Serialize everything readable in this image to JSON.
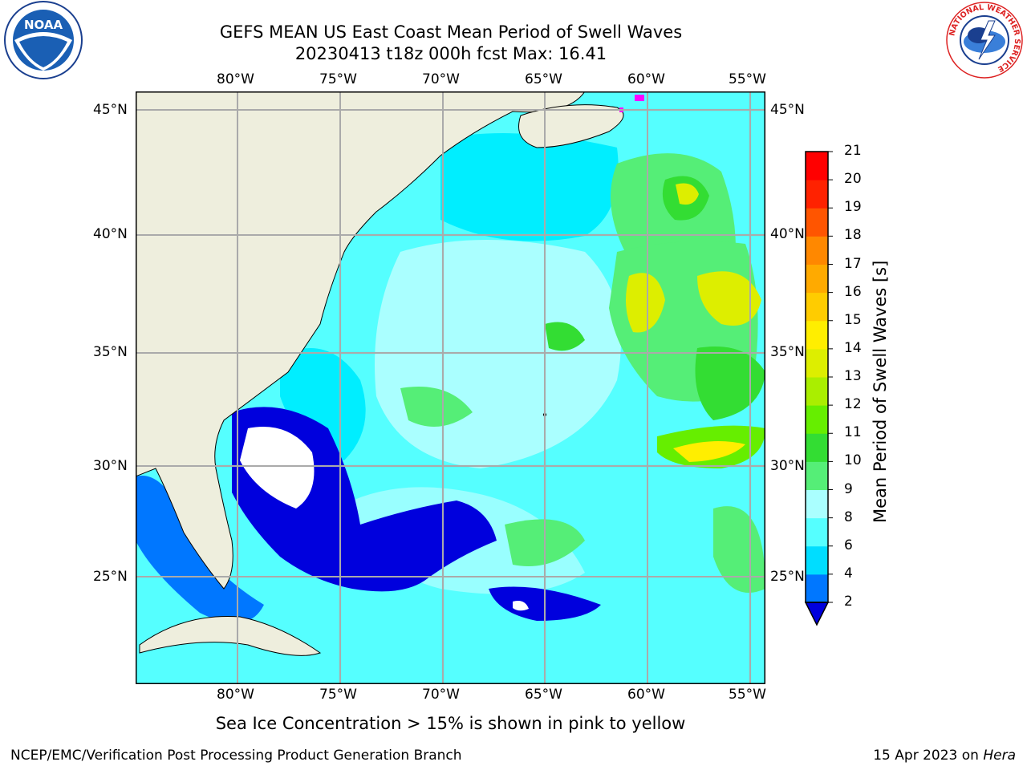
{
  "title": {
    "line1": "GEFS MEAN US East Coast Mean Period of Swell Waves",
    "line2": "20230413 t18z 000h fcst   Max: 16.41"
  },
  "map": {
    "lon_ticks": [
      "80°W",
      "75°W",
      "70°W",
      "65°W",
      "60°W",
      "55°W"
    ],
    "lat_ticks": [
      "45°N",
      "40°N",
      "35°N",
      "30°N",
      "25°N"
    ],
    "land_color": "#eeeedd",
    "grid_color": "#aaaaaa"
  },
  "colorbar": {
    "label": "Mean Period of Swell Waves [s]",
    "ticks": [
      "2",
      "4",
      "6",
      "8",
      "9",
      "10",
      "11",
      "12",
      "13",
      "14",
      "15",
      "16",
      "17",
      "18",
      "19",
      "20",
      "21"
    ],
    "colors": [
      "#0000dd",
      "#0077ff",
      "#00ddff",
      "#55ffff",
      "#aaffff",
      "#55ee77",
      "#33dd33",
      "#66ee00",
      "#aaee00",
      "#ddee00",
      "#ffee00",
      "#ffcc00",
      "#ffaa00",
      "#ff8800",
      "#ff5500",
      "#ff2200",
      "#ff0000"
    ]
  },
  "footer": {
    "note": "Sea Ice Concentration > 15% is shown in pink to yellow",
    "left": "NCEP/EMC/Verification Post Processing Product Generation Branch",
    "right_date": "15 Apr 2023 on ",
    "right_host": "Hera"
  },
  "logos": {
    "noaa_text": "NOAA",
    "nws_text": "NATIONAL WEATHER SERVICE"
  }
}
